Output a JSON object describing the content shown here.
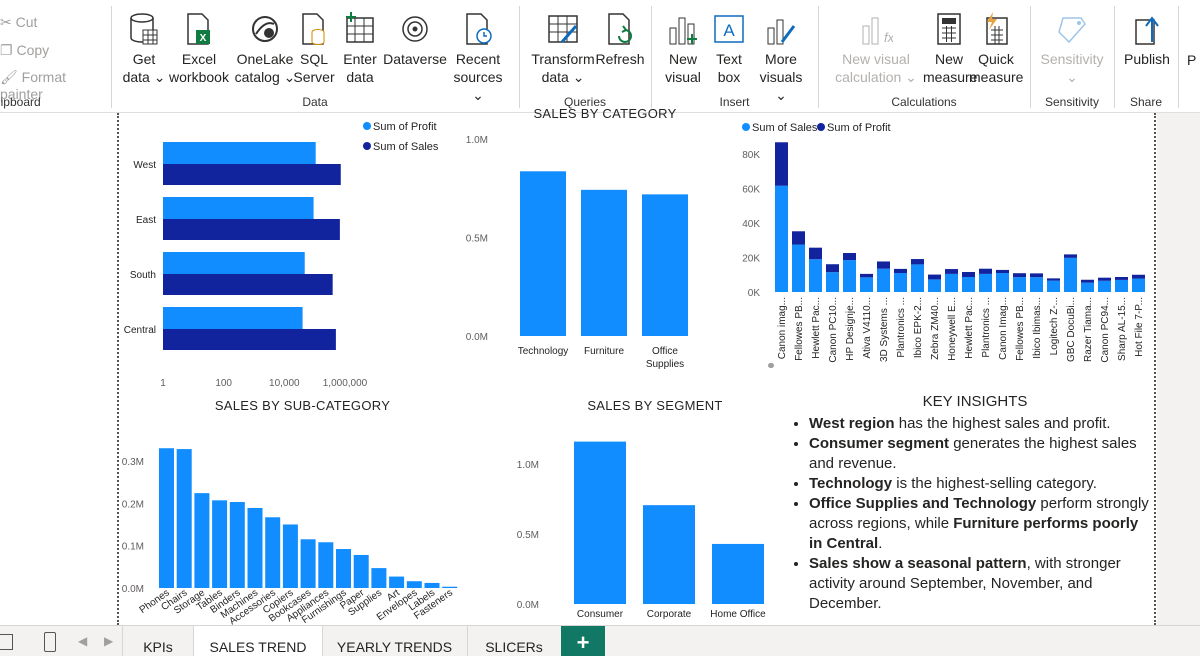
{
  "ribbon": {
    "clipboard": {
      "cut": "Cut",
      "copy": "Copy",
      "format_painter": "Format painter",
      "label": "Clipboard"
    },
    "data": {
      "label": "Data",
      "buttons": [
        {
          "l1": "Get",
          "l2": "data ⌄"
        },
        {
          "l1": "Excel",
          "l2": "workbook"
        },
        {
          "l1": "OneLake",
          "l2": "catalog ⌄"
        },
        {
          "l1": "SQL",
          "l2": "Server"
        },
        {
          "l1": "Enter",
          "l2": "data"
        },
        {
          "l1": "Dataverse",
          "l2": ""
        },
        {
          "l1": "Recent",
          "l2": "sources ⌄"
        }
      ]
    },
    "queries": {
      "label": "Queries",
      "buttons": [
        {
          "l1": "Transform",
          "l2": "data ⌄"
        },
        {
          "l1": "Refresh",
          "l2": ""
        }
      ]
    },
    "insert": {
      "label": "Insert",
      "buttons": [
        {
          "l1": "New",
          "l2": "visual"
        },
        {
          "l1": "Text",
          "l2": "box"
        },
        {
          "l1": "More",
          "l2": "visuals ⌄"
        }
      ]
    },
    "calculations": {
      "label": "Calculations",
      "buttons": [
        {
          "l1": "New visual",
          "l2": "calculation ⌄"
        },
        {
          "l1": "New",
          "l2": "measure"
        },
        {
          "l1": "Quick",
          "l2": "measure"
        }
      ]
    },
    "sensitivity": {
      "label": "Sensitivity",
      "buttons": [
        {
          "l1": "Sensitivity",
          "l2": "⌄"
        }
      ]
    },
    "share": {
      "label": "Share",
      "buttons": [
        {
          "l1": "Publish",
          "l2": ""
        }
      ]
    },
    "overflow_letter": "P"
  },
  "colors": {
    "light_blue": "#118DFF",
    "dark_blue": "#12239E",
    "accent_green": "#117865"
  },
  "chart_data": [
    {
      "type": "bar",
      "orientation": "horizontal",
      "categories": [
        "West",
        "East",
        "South",
        "Central"
      ],
      "series": [
        {
          "name": "Sum of Profit",
          "values": [
            108000,
            92000,
            47000,
            40000
          ]
        },
        {
          "name": "Sum of Sales",
          "values": [
            725000,
            678000,
            392000,
            501000
          ]
        }
      ],
      "x_scale": "log",
      "x_ticks": [
        "1",
        "100",
        "10,000",
        "1,000,000"
      ],
      "legend": "top-right"
    },
    {
      "type": "bar",
      "title": "SALES BY CATEGORY",
      "categories": [
        "Technology",
        "Furniture",
        "Office Supplies"
      ],
      "values": [
        836000,
        742000,
        719000
      ],
      "y_ticks": [
        "0.0M",
        "0.5M",
        "1.0M"
      ],
      "ylim": [
        0,
        1000000
      ]
    },
    {
      "type": "bar",
      "stacked": true,
      "categories": [
        "Canon imag...",
        "Fellowes PB...",
        "Hewlett Pac...",
        "Canon PC10...",
        "HP Designje...",
        "Ativa V4110...",
        "3D Systems ...",
        "Plantronics ...",
        "Ibico EPK-2...",
        "Zebra ZM40...",
        "Honeywell E...",
        "Hewlett Pac...",
        "Plantronics ...",
        "Canon Imag...",
        "Fellowes PB...",
        "Ibico Ibimas...",
        "Logitech Z-...",
        "GBC DocuBi...",
        "Razer Tiama...",
        "Canon PC94...",
        "Sharp AL-15...",
        "Hot File 7-P..."
      ],
      "series": [
        {
          "name": "Sum of Sales",
          "values": [
            61600,
            27500,
            19000,
            11500,
            18500,
            8500,
            13500,
            11000,
            16000,
            7300,
            10500,
            8700,
            10500,
            11000,
            8600,
            8600,
            6600,
            19800,
            5400,
            6500,
            7000,
            7800
          ]
        },
        {
          "name": "Sum of Profit",
          "values": [
            25200,
            7700,
            6700,
            4600,
            4100,
            2000,
            4200,
            2400,
            3100,
            2800,
            2800,
            2900,
            3000,
            1800,
            2300,
            2200,
            1300,
            2000,
            1700,
            1800,
            1700,
            2200
          ]
        }
      ],
      "y_ticks": [
        "0K",
        "20K",
        "40K",
        "60K",
        "80K"
      ],
      "ylim": [
        0,
        88000
      ],
      "legend": "top-left"
    },
    {
      "type": "bar",
      "title": "SALES BY SUB-CATEGORY",
      "categories": [
        "Phones",
        "Chairs",
        "Storage",
        "Tables",
        "Binders",
        "Machines",
        "Accessories",
        "Copiers",
        "Bookcases",
        "Appliances",
        "Furnishings",
        "Paper",
        "Supplies",
        "Art",
        "Envelopes",
        "Labels",
        "Fasteners"
      ],
      "values": [
        330000,
        328000,
        224000,
        207000,
        203000,
        189000,
        167000,
        150000,
        115000,
        108000,
        92000,
        78000,
        47000,
        27000,
        16000,
        12000,
        3000
      ],
      "y_ticks": [
        "0.0M",
        "0.1M",
        "0.2M",
        "0.3M"
      ],
      "ylim": [
        0,
        340000
      ]
    },
    {
      "type": "bar",
      "title": "SALES BY SEGMENT",
      "categories": [
        "Consumer",
        "Corporate",
        "Home Office"
      ],
      "values": [
        1160000,
        706000,
        429000
      ],
      "y_ticks": [
        "0.0M",
        "0.5M",
        "1.0M"
      ],
      "ylim": [
        0,
        1200000
      ]
    }
  ],
  "insights": {
    "title": "KEY INSIGHTS",
    "items": [
      {
        "bold": "West region",
        "rest": " has the highest sales and profit."
      },
      {
        "bold": "Consumer segment",
        "rest": " generates the highest sales and revenue."
      },
      {
        "bold": "Technology",
        "rest": " is the highest-selling category."
      },
      {
        "bold": "Office Supplies and Technology",
        "rest": " perform strongly across regions, while ",
        "bold2": "Furniture performs poorly in Central",
        "rest2": "."
      },
      {
        "bold": "Sales show a seasonal pattern",
        "rest": ", with stronger activity around September, November, and December."
      }
    ]
  },
  "tabs": [
    {
      "label": "KPIs",
      "active": false
    },
    {
      "label": "SALES TREND",
      "active": true
    },
    {
      "label": "YEARLY TRENDS",
      "active": false
    },
    {
      "label": "SLICERs",
      "active": false
    }
  ],
  "add_tab": "+"
}
